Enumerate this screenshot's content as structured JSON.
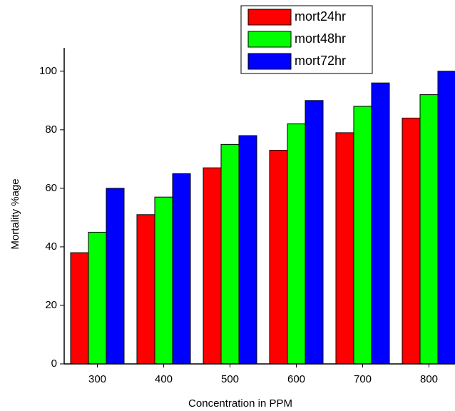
{
  "chart_data": {
    "type": "bar",
    "categories": [
      "300",
      "400",
      "500",
      "600",
      "700",
      "800"
    ],
    "series": [
      {
        "name": "mort24hr",
        "color": "#ff0000",
        "values": [
          38,
          51,
          67,
          73,
          79,
          84
        ]
      },
      {
        "name": "mort48hr",
        "color": "#00ff00",
        "values": [
          45,
          57,
          75,
          82,
          88,
          92
        ]
      },
      {
        "name": "mort72hr",
        "color": "#0000ff",
        "values": [
          60,
          65,
          78,
          90,
          96,
          100
        ]
      }
    ],
    "x_label": "Concentration in PPM",
    "y_label": "Mortality %age",
    "ylim": [
      0,
      108
    ],
    "yticks": [
      0,
      20,
      40,
      60,
      80,
      100
    ],
    "grid": false,
    "legend": "top-right"
  }
}
